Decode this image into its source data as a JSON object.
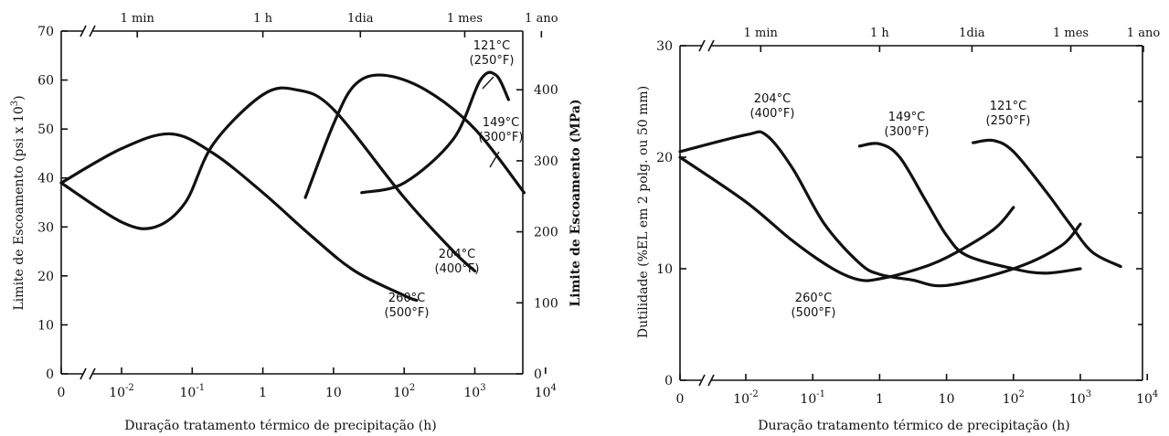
{
  "chart_data": [
    {
      "type": "line",
      "xlabel": "Duração tratamento térmico de precipitação (h)",
      "ylabel": "Limite de Escoamento (psi x 10³)",
      "ylabel_right": "Limite de Escoamento (MPa)",
      "x_tick_labels": [
        "0",
        "10⁻²",
        "10⁻¹",
        "1",
        "10",
        "10²",
        "10³",
        "10⁴"
      ],
      "x_log_range_hours": [
        0.003,
        10000
      ],
      "y_ticks": [
        0,
        10,
        20,
        30,
        40,
        50,
        60,
        70
      ],
      "ylim": [
        0,
        70
      ],
      "y_right_ticks": [
        0,
        100,
        200,
        300,
        400
      ],
      "top_axis_labels": [
        {
          "label": "1 min",
          "hours": 0.0167
        },
        {
          "label": "1 h",
          "hours": 1
        },
        {
          "label": "1dia",
          "hours": 24
        },
        {
          "label": "1 mes",
          "hours": 720
        },
        {
          "label": "1 ano",
          "hours": 8760
        }
      ],
      "series": [
        {
          "name": "260°C (500°F)",
          "name_line1": "260°C",
          "name_line2": "(500°F)",
          "points": [
            [
              0,
              39
            ],
            [
              0.01,
              46
            ],
            [
              0.05,
              49
            ],
            [
              0.2,
              45
            ],
            [
              1,
              37
            ],
            [
              5,
              28
            ],
            [
              20,
              21
            ],
            [
              100,
              16
            ],
            [
              150,
              15
            ]
          ]
        },
        {
          "name": "204°C (400°F)",
          "name_line1": "204°C",
          "name_line2": "(400°F)",
          "points": [
            [
              0,
              39
            ],
            [
              0.01,
              31
            ],
            [
              0.03,
              30
            ],
            [
              0.08,
              35
            ],
            [
              0.2,
              47
            ],
            [
              1,
              57
            ],
            [
              3,
              58
            ],
            [
              10,
              54
            ],
            [
              100,
              36
            ],
            [
              500,
              25
            ],
            [
              1000,
              21
            ]
          ]
        },
        {
          "name": "149°C (300°F)",
          "name_line1": "149°C",
          "name_line2": "(300°F)",
          "points": [
            [
              4,
              36
            ],
            [
              10,
              51
            ],
            [
              20,
              59
            ],
            [
              50,
              61
            ],
            [
              200,
              58
            ],
            [
              1000,
              50
            ],
            [
              5000,
              37
            ]
          ]
        },
        {
          "name": "121°C (250°F)",
          "name_line1": "121°C",
          "name_line2": "(250°F)",
          "points": [
            [
              25,
              37
            ],
            [
              100,
              39
            ],
            [
              500,
              48
            ],
            [
              1200,
              60
            ],
            [
              2000,
              61
            ],
            [
              3000,
              56
            ]
          ]
        }
      ]
    },
    {
      "type": "line",
      "xlabel": "Duração tratamento térmico de precipitação (h)",
      "ylabel": "Dutilidade (%EL em 2 polg. ou 50 mm)",
      "x_tick_labels": [
        "0",
        "10⁻²",
        "10⁻¹",
        "1",
        "10",
        "10²",
        "10³",
        "10⁴"
      ],
      "x_log_range_hours": [
        0.003,
        10000
      ],
      "y_ticks": [
        0,
        10,
        20,
        30
      ],
      "ylim": [
        0,
        30
      ],
      "top_axis_labels": [
        {
          "label": "1 min",
          "hours": 0.0167
        },
        {
          "label": "1 h",
          "hours": 1
        },
        {
          "label": "1dia",
          "hours": 24
        },
        {
          "label": "1 mes",
          "hours": 720
        },
        {
          "label": "1 ano",
          "hours": 8760
        }
      ],
      "series": [
        {
          "name": "260°C (500°F)",
          "name_line1": "260°C",
          "name_line2": "(500°F)",
          "points": [
            [
              0,
              20
            ],
            [
              0.01,
              16
            ],
            [
              0.05,
              12.5
            ],
            [
              0.2,
              10
            ],
            [
              0.5,
              9
            ],
            [
              1,
              9.1
            ],
            [
              3,
              9.8
            ],
            [
              10,
              11
            ],
            [
              50,
              13.5
            ],
            [
              100,
              15.5
            ]
          ]
        },
        {
          "name": "204°C (400°F)",
          "name_line1": "204°C",
          "name_line2": "(400°F)",
          "points": [
            [
              0,
              20.5
            ],
            [
              0.01,
              22
            ],
            [
              0.02,
              22
            ],
            [
              0.05,
              19
            ],
            [
              0.15,
              14
            ],
            [
              0.5,
              10.5
            ],
            [
              1,
              9.5
            ],
            [
              3,
              9
            ],
            [
              10,
              8.5
            ],
            [
              100,
              10
            ],
            [
              500,
              12
            ],
            [
              1000,
              14
            ]
          ]
        },
        {
          "name": "149°C (300°F)",
          "name_line1": "149°C",
          "name_line2": "(300°F)",
          "points": [
            [
              0.5,
              21
            ],
            [
              1,
              21.2
            ],
            [
              2,
              20
            ],
            [
              5,
              16
            ],
            [
              10,
              13
            ],
            [
              20,
              11.2
            ],
            [
              100,
              10
            ],
            [
              300,
              9.6
            ],
            [
              1000,
              10
            ]
          ]
        },
        {
          "name": "121°C (250°F)",
          "name_line1": "121°C",
          "name_line2": "(250°F)",
          "points": [
            [
              25,
              21.3
            ],
            [
              50,
              21.5
            ],
            [
              100,
              20.5
            ],
            [
              300,
              17
            ],
            [
              700,
              14
            ],
            [
              1500,
              11.5
            ],
            [
              4000,
              10.2
            ]
          ]
        }
      ]
    }
  ]
}
